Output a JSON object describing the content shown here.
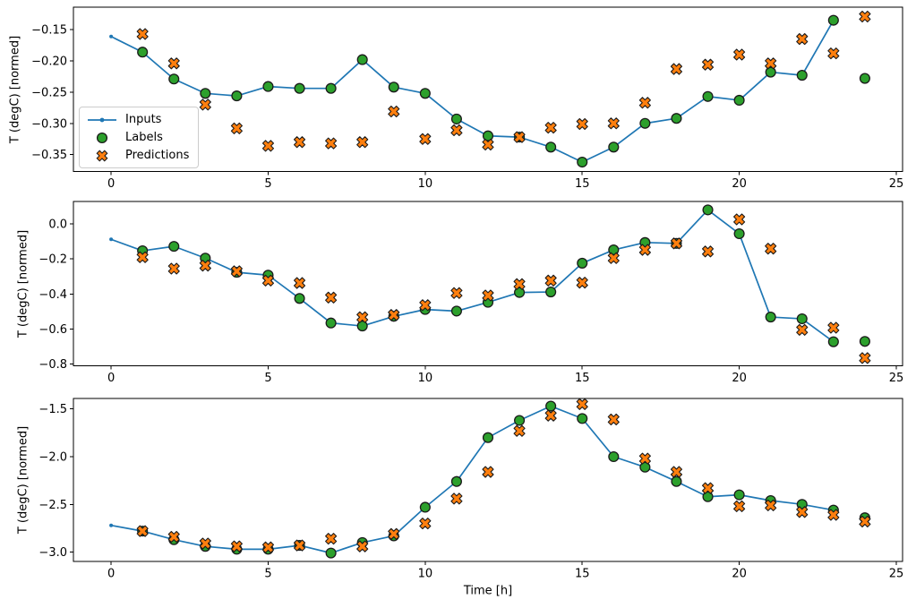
{
  "figure": {
    "background": "#ffffff",
    "xlabel": "Time [h]",
    "ylabel": "T (degC) [normed]",
    "legend": {
      "items": [
        {
          "label": "Inputs"
        },
        {
          "label": "Labels"
        },
        {
          "label": "Predictions"
        }
      ]
    },
    "colors": {
      "inputs": "#1f77b4",
      "labels": "#2ca02c",
      "predictions": "#ff7f0e",
      "marker_edge": "#1a1a1a",
      "spine": "#000000",
      "tick_text": "#000000"
    }
  },
  "chart_data": [
    {
      "type": "line",
      "ylabel": "T (degC) [normed]",
      "xlim": [
        -1.2,
        25.2
      ],
      "ylim": [
        -0.377,
        -0.114
      ],
      "grid": false,
      "legend_position": "inside-left",
      "xticks": {
        "values": [
          0,
          5,
          10,
          15,
          20,
          25
        ],
        "labels": [
          "0",
          "5",
          "10",
          "15",
          "20",
          "25"
        ]
      },
      "yticks": {
        "values": [
          -0.15,
          -0.2,
          -0.25,
          -0.3,
          -0.35
        ],
        "labels": [
          "−0.15",
          "−0.20",
          "−0.25",
          "−0.30",
          "−0.35"
        ]
      },
      "series": [
        {
          "name": "Inputs",
          "type": "line",
          "x": [
            0,
            1,
            2,
            3,
            4,
            5,
            6,
            7,
            8,
            9,
            10,
            11,
            12,
            13,
            14,
            15,
            16,
            17,
            18,
            19,
            20,
            21,
            22,
            23
          ],
          "y": [
            -0.161,
            -0.186,
            -0.229,
            -0.252,
            -0.256,
            -0.241,
            -0.244,
            -0.244,
            -0.198,
            -0.242,
            -0.252,
            -0.293,
            -0.32,
            -0.322,
            -0.338,
            -0.362,
            -0.338,
            -0.3,
            -0.292,
            -0.257,
            -0.263,
            -0.218,
            -0.223,
            -0.135
          ]
        },
        {
          "name": "Labels",
          "type": "scatter_circle",
          "x": [
            1,
            2,
            3,
            4,
            5,
            6,
            7,
            8,
            9,
            10,
            11,
            12,
            13,
            14,
            15,
            16,
            17,
            18,
            19,
            20,
            21,
            22,
            23,
            24
          ],
          "y": [
            -0.186,
            -0.229,
            -0.252,
            -0.256,
            -0.241,
            -0.244,
            -0.244,
            -0.198,
            -0.242,
            -0.252,
            -0.293,
            -0.32,
            -0.322,
            -0.338,
            -0.362,
            -0.338,
            -0.3,
            -0.292,
            -0.257,
            -0.263,
            -0.218,
            -0.223,
            -0.135,
            -0.228
          ]
        },
        {
          "name": "Predictions",
          "type": "scatter_x",
          "x": [
            1,
            2,
            3,
            4,
            5,
            6,
            7,
            8,
            9,
            10,
            11,
            12,
            13,
            14,
            15,
            16,
            17,
            18,
            19,
            20,
            21,
            22,
            23,
            24
          ],
          "y": [
            -0.157,
            -0.204,
            -0.27,
            -0.308,
            -0.336,
            -0.33,
            -0.332,
            -0.33,
            -0.281,
            -0.325,
            -0.311,
            -0.334,
            -0.322,
            -0.307,
            -0.301,
            -0.3,
            -0.267,
            -0.213,
            -0.206,
            -0.19,
            -0.204,
            -0.165,
            -0.188,
            -0.129
          ]
        }
      ]
    },
    {
      "type": "line",
      "ylabel": "T (degC) [normed]",
      "xlim": [
        -1.2,
        25.2
      ],
      "ylim": [
        -0.809,
        0.128
      ],
      "grid": false,
      "xticks": {
        "values": [
          0,
          5,
          10,
          15,
          20,
          25
        ],
        "labels": [
          "0",
          "5",
          "10",
          "15",
          "20",
          "25"
        ]
      },
      "yticks": {
        "values": [
          0.0,
          -0.2,
          -0.4,
          -0.6,
          -0.8
        ],
        "labels": [
          "0.0",
          "−0.2",
          "−0.4",
          "−0.6",
          "−0.8"
        ]
      },
      "series": [
        {
          "name": "Inputs",
          "type": "line",
          "x": [
            0,
            1,
            2,
            3,
            4,
            5,
            6,
            7,
            8,
            9,
            10,
            11,
            12,
            13,
            14,
            15,
            16,
            17,
            18,
            19,
            20,
            21,
            22,
            23
          ],
          "y": [
            -0.088,
            -0.153,
            -0.128,
            -0.195,
            -0.276,
            -0.292,
            -0.425,
            -0.565,
            -0.582,
            -0.527,
            -0.488,
            -0.497,
            -0.447,
            -0.391,
            -0.388,
            -0.224,
            -0.148,
            -0.106,
            -0.111,
            0.08,
            -0.056,
            -0.531,
            -0.541,
            -0.672
          ]
        },
        {
          "name": "Labels",
          "type": "scatter_circle",
          "x": [
            1,
            2,
            3,
            4,
            5,
            6,
            7,
            8,
            9,
            10,
            11,
            12,
            13,
            14,
            15,
            16,
            17,
            18,
            19,
            20,
            21,
            22,
            23,
            24
          ],
          "y": [
            -0.153,
            -0.128,
            -0.195,
            -0.276,
            -0.292,
            -0.425,
            -0.565,
            -0.582,
            -0.527,
            -0.488,
            -0.497,
            -0.447,
            -0.391,
            -0.388,
            -0.224,
            -0.148,
            -0.106,
            -0.111,
            0.08,
            -0.056,
            -0.531,
            -0.541,
            -0.672,
            -0.67
          ]
        },
        {
          "name": "Predictions",
          "type": "scatter_x",
          "x": [
            1,
            2,
            3,
            4,
            5,
            6,
            7,
            8,
            9,
            10,
            11,
            12,
            13,
            14,
            15,
            16,
            17,
            18,
            19,
            20,
            21,
            22,
            23,
            24
          ],
          "y": [
            -0.19,
            -0.255,
            -0.238,
            -0.27,
            -0.323,
            -0.337,
            -0.42,
            -0.532,
            -0.519,
            -0.463,
            -0.394,
            -0.408,
            -0.343,
            -0.323,
            -0.335,
            -0.195,
            -0.148,
            -0.111,
            -0.157,
            0.026,
            -0.141,
            -0.604,
            -0.592,
            -0.765
          ]
        }
      ]
    },
    {
      "type": "line",
      "ylabel": "T (degC) [normed]",
      "xlabel": "Time [h]",
      "xlim": [
        -1.2,
        25.2
      ],
      "ylim": [
        -3.098,
        -1.39
      ],
      "grid": false,
      "xticks": {
        "values": [
          0,
          5,
          10,
          15,
          20,
          25
        ],
        "labels": [
          "0",
          "5",
          "10",
          "15",
          "20",
          "25"
        ]
      },
      "yticks": {
        "values": [
          -1.5,
          -2.0,
          -2.5,
          -3.0
        ],
        "labels": [
          "−1.5",
          "−2.0",
          "−2.5",
          "−3.0"
        ]
      },
      "series": [
        {
          "name": "Inputs",
          "type": "line",
          "x": [
            0,
            1,
            2,
            3,
            4,
            5,
            6,
            7,
            8,
            9,
            10,
            11,
            12,
            13,
            14,
            15,
            16,
            17,
            18,
            19,
            20,
            21,
            22,
            23
          ],
          "y": [
            -2.72,
            -2.78,
            -2.87,
            -2.94,
            -2.97,
            -2.97,
            -2.93,
            -3.01,
            -2.9,
            -2.83,
            -2.53,
            -2.26,
            -1.8,
            -1.62,
            -1.47,
            -1.6,
            -2.0,
            -2.11,
            -2.26,
            -2.42,
            -2.4,
            -2.46,
            -2.5,
            -2.56
          ]
        },
        {
          "name": "Labels",
          "type": "scatter_circle",
          "x": [
            1,
            2,
            3,
            4,
            5,
            6,
            7,
            8,
            9,
            10,
            11,
            12,
            13,
            14,
            15,
            16,
            17,
            18,
            19,
            20,
            21,
            22,
            23,
            24
          ],
          "y": [
            -2.78,
            -2.87,
            -2.94,
            -2.97,
            -2.97,
            -2.93,
            -3.01,
            -2.9,
            -2.83,
            -2.53,
            -2.26,
            -1.8,
            -1.62,
            -1.47,
            -1.6,
            -2.0,
            -2.11,
            -2.26,
            -2.42,
            -2.4,
            -2.46,
            -2.5,
            -2.56,
            -2.64
          ]
        },
        {
          "name": "Predictions",
          "type": "scatter_x",
          "x": [
            1,
            2,
            3,
            4,
            5,
            6,
            7,
            8,
            9,
            10,
            11,
            12,
            13,
            14,
            15,
            16,
            17,
            18,
            19,
            20,
            21,
            22,
            23,
            24
          ],
          "y": [
            -2.78,
            -2.84,
            -2.91,
            -2.94,
            -2.95,
            -2.93,
            -2.86,
            -2.94,
            -2.81,
            -2.7,
            -2.44,
            -2.16,
            -1.73,
            -1.57,
            -1.45,
            -1.61,
            -2.02,
            -2.16,
            -2.33,
            -2.52,
            -2.51,
            -2.58,
            -2.61,
            -2.68
          ]
        }
      ]
    }
  ]
}
